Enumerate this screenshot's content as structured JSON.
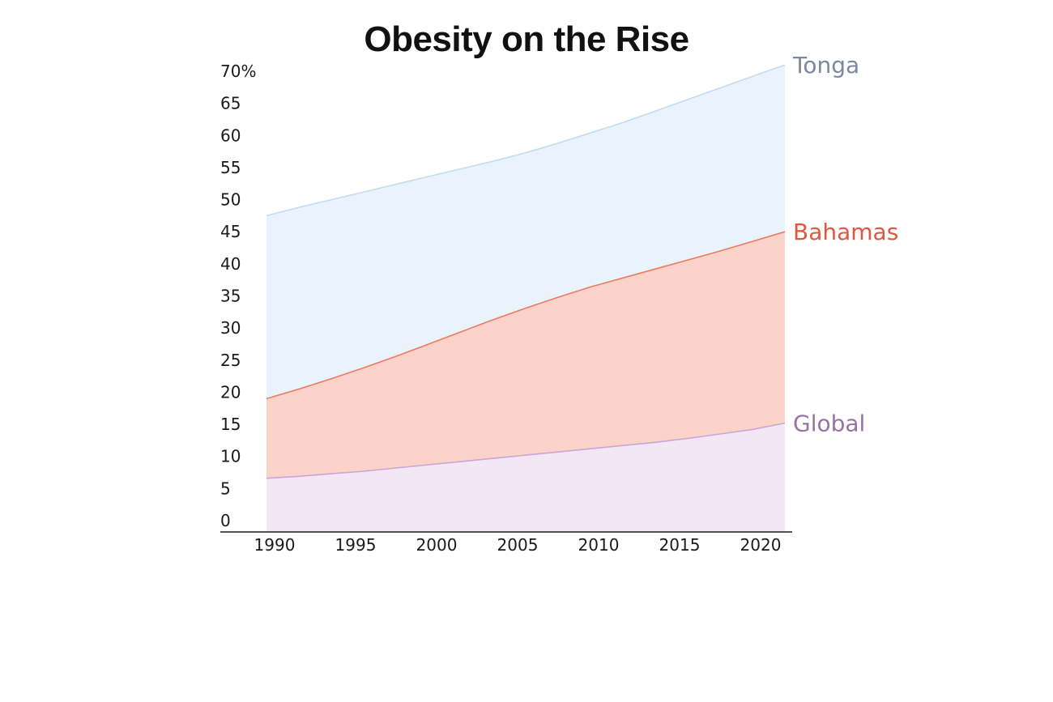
{
  "chart_data": {
    "type": "area",
    "title": "Obesity on the Rise",
    "xlabel": "",
    "ylabel": "",
    "x": [
      1990,
      1992,
      1994,
      1996,
      1998,
      2000,
      2002,
      2004,
      2006,
      2008,
      2010,
      2012,
      2014,
      2016,
      2018,
      2020,
      2022
    ],
    "ylim": [
      0,
      70
    ],
    "y_ticks": [
      0,
      5,
      10,
      15,
      20,
      25,
      30,
      35,
      40,
      45,
      50,
      55,
      60,
      65,
      70
    ],
    "y_tick_labels": [
      "0",
      "5",
      "10",
      "15",
      "20",
      "25",
      "30",
      "35",
      "40",
      "45",
      "50",
      "55",
      "60",
      "65",
      "70%"
    ],
    "x_ticks": [
      1990,
      1995,
      2000,
      2005,
      2010,
      2015,
      2020
    ],
    "x_tick_labels": [
      "1990",
      "1995",
      "2000",
      "2005",
      "2010",
      "2015",
      "2020"
    ],
    "grid": false,
    "series": [
      {
        "name": "Tonga",
        "color": "#7a8a9e",
        "fill": "#eaf3fc",
        "stroke": "#c4dcf0",
        "values": [
          47.5,
          48.8,
          50.0,
          51.2,
          52.4,
          53.6,
          54.8,
          56.0,
          57.3,
          58.8,
          60.4,
          62.0,
          63.8,
          65.6,
          67.4,
          69.2,
          71.0
        ]
      },
      {
        "name": "Bahamas",
        "color": "#e0563e",
        "fill": "#fcd3cb",
        "stroke": "#ec7a62",
        "values": [
          19.0,
          20.5,
          22.1,
          23.8,
          25.6,
          27.5,
          29.4,
          31.3,
          33.1,
          34.8,
          36.4,
          37.8,
          39.2,
          40.6,
          42.0,
          43.5,
          45.0
        ]
      },
      {
        "name": "Global",
        "color": "#9a72a6",
        "fill": "#f3e7f6",
        "stroke": "#c9a6d6",
        "values": [
          6.6,
          6.9,
          7.3,
          7.7,
          8.2,
          8.7,
          9.2,
          9.7,
          10.2,
          10.7,
          11.2,
          11.7,
          12.2,
          12.8,
          13.5,
          14.2,
          15.2
        ]
      }
    ]
  }
}
